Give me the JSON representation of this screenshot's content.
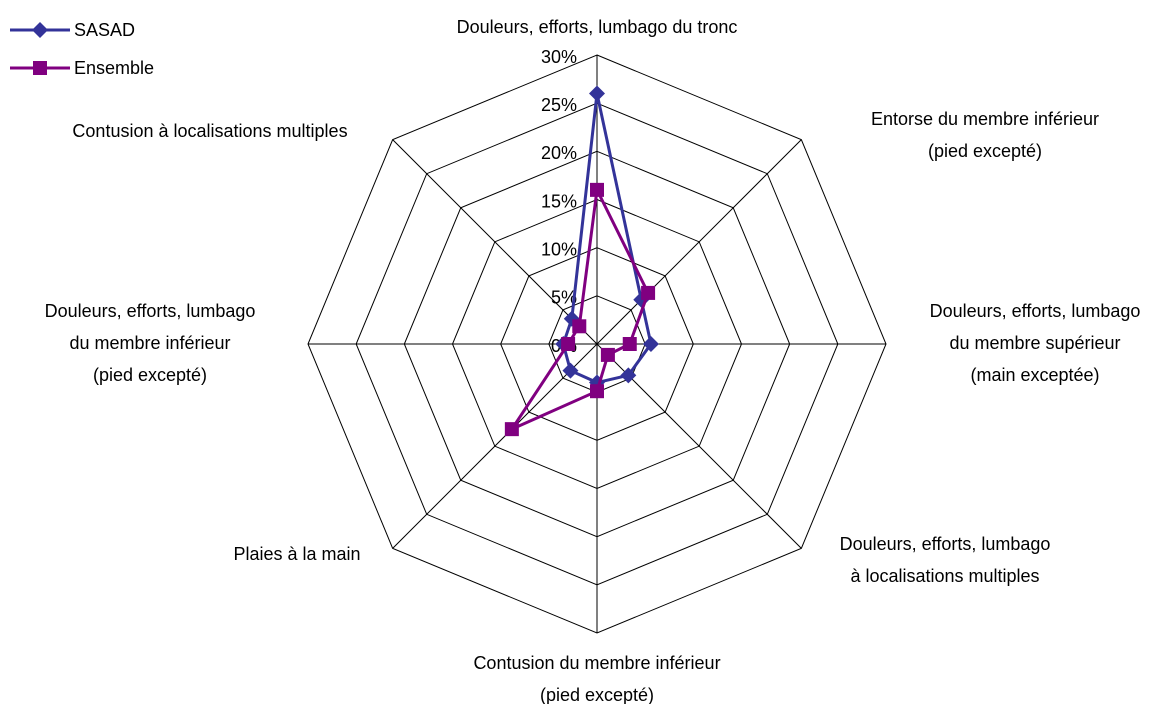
{
  "chart_data": {
    "type": "radar",
    "categories": [
      [
        "Douleurs, efforts, lumbago du tronc"
      ],
      [
        "Entorse du membre inférieur",
        "(pied excepté)"
      ],
      [
        "Douleurs, efforts, lumbago",
        "du membre supérieur",
        "(main exceptée)"
      ],
      [
        "Douleurs, efforts, lumbago",
        "à localisations multiples"
      ],
      [
        "Contusion du membre inférieur",
        "(pied excepté)"
      ],
      [
        "Plaies à la main"
      ],
      [
        "Douleurs, efforts, lumbago",
        "du membre inférieur",
        "(pied excepté)"
      ],
      [
        "Contusion à localisations multiples"
      ]
    ],
    "series": [
      {
        "name": "SASAD",
        "color": "#333399",
        "marker": "diamond",
        "values": [
          26,
          6.5,
          5.6,
          4.6,
          4,
          3.9,
          3.5,
          3.7
        ]
      },
      {
        "name": "Ensemble",
        "color": "#800080",
        "marker": "square",
        "values": [
          16,
          7.5,
          3.4,
          1.6,
          4.9,
          12.5,
          3,
          2.6
        ]
      }
    ],
    "ylim": [
      0,
      30
    ],
    "yticks": [
      {
        "value": 0,
        "label": "0%"
      },
      {
        "value": 5,
        "label": "5%"
      },
      {
        "value": 10,
        "label": "10%"
      },
      {
        "value": 15,
        "label": "15%"
      },
      {
        "value": 20,
        "label": "20%"
      },
      {
        "value": 25,
        "label": "25%"
      },
      {
        "value": 30,
        "label": "30%"
      }
    ],
    "grid": true,
    "legend": "top-left"
  }
}
